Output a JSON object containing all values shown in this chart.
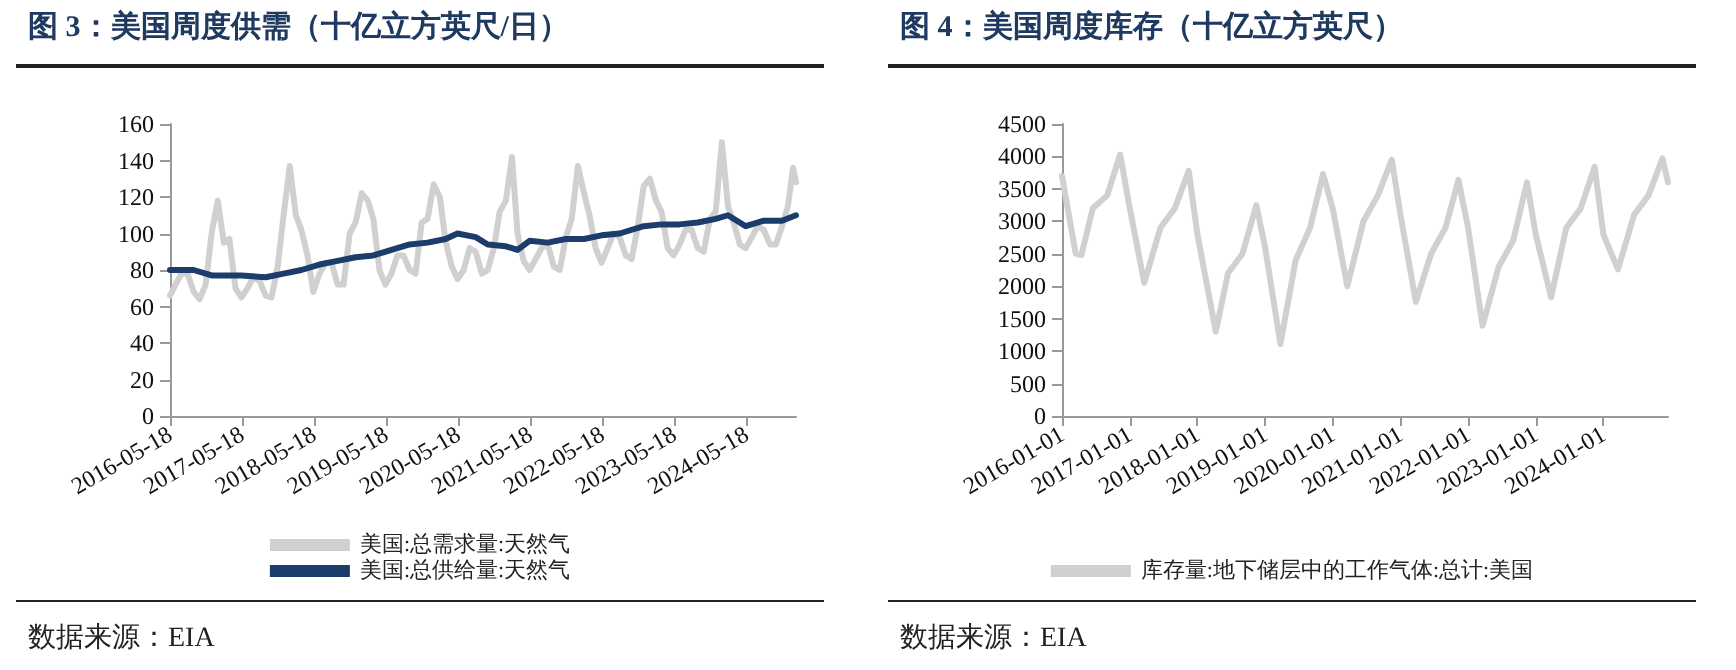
{
  "chart_data": [
    {
      "type": "line",
      "title": "图 3：美国周度供需（十亿立方英尺/日）",
      "annotations": [
        "数据来源：EIA"
      ],
      "legend": "bottom",
      "grid": false,
      "marker": "none",
      "line_style": "solid",
      "xlim": [
        "2016-05-18",
        "2025-01-25"
      ],
      "xticks": [
        "2016-05-18",
        "2017-05-18",
        "2018-05-18",
        "2019-05-18",
        "2020-05-18",
        "2021-05-18",
        "2022-05-18",
        "2023-05-18",
        "2024-05-18"
      ],
      "ylim": [
        0,
        160
      ],
      "yticks": [
        0,
        20,
        40,
        60,
        80,
        100,
        120,
        140,
        160
      ],
      "series": [
        {
          "name": "美国:总需求量:天然气",
          "color": "#d0d0d0",
          "x": [
            "2016-05-18",
            "2016-06-15",
            "2016-07-15",
            "2016-08-15",
            "2016-09-15",
            "2016-10-15",
            "2016-11-15",
            "2016-12-15",
            "2017-01-15",
            "2017-02-15",
            "2017-03-15",
            "2017-04-15",
            "2017-05-15",
            "2017-06-15",
            "2017-07-15",
            "2017-08-15",
            "2017-09-15",
            "2017-10-15",
            "2017-11-15",
            "2017-12-15",
            "2018-01-15",
            "2018-02-15",
            "2018-03-15",
            "2018-04-15",
            "2018-05-15",
            "2018-06-15",
            "2018-07-15",
            "2018-08-15",
            "2018-09-15",
            "2018-10-15",
            "2018-11-15",
            "2018-12-15",
            "2019-01-15",
            "2019-02-15",
            "2019-03-15",
            "2019-04-15",
            "2019-05-15",
            "2019-06-15",
            "2019-07-15",
            "2019-08-15",
            "2019-09-15",
            "2019-10-15",
            "2019-11-15",
            "2019-12-15",
            "2020-01-15",
            "2020-02-15",
            "2020-03-15",
            "2020-04-15",
            "2020-05-15",
            "2020-06-15",
            "2020-07-15",
            "2020-08-15",
            "2020-09-15",
            "2020-10-15",
            "2020-11-15",
            "2020-12-15",
            "2021-01-15",
            "2021-02-15",
            "2021-03-15",
            "2021-04-15",
            "2021-05-15",
            "2021-06-15",
            "2021-07-15",
            "2021-08-15",
            "2021-09-15",
            "2021-10-15",
            "2021-11-15",
            "2021-12-15",
            "2022-01-15",
            "2022-02-15",
            "2022-03-15",
            "2022-04-15",
            "2022-05-15",
            "2022-06-15",
            "2022-07-15",
            "2022-08-15",
            "2022-09-15",
            "2022-10-15",
            "2022-11-15",
            "2022-12-15",
            "2023-01-15",
            "2023-02-15",
            "2023-03-15",
            "2023-04-15",
            "2023-05-15",
            "2023-06-15",
            "2023-07-15",
            "2023-08-15",
            "2023-09-15",
            "2023-10-15",
            "2023-11-15",
            "2023-12-15",
            "2024-01-15",
            "2024-02-15",
            "2024-03-15",
            "2024-04-15",
            "2024-05-15",
            "2024-06-15",
            "2024-07-15",
            "2024-08-15",
            "2024-09-15",
            "2024-10-15",
            "2024-11-15",
            "2024-12-15",
            "2025-01-10",
            "2025-01-25"
          ],
          "values": [
            66,
            72,
            78,
            78,
            68,
            64,
            72,
            100,
            118,
            95,
            97,
            70,
            65,
            70,
            76,
            74,
            66,
            65,
            82,
            110,
            137,
            110,
            102,
            88,
            68,
            78,
            84,
            84,
            72,
            72,
            100,
            106,
            122,
            118,
            108,
            80,
            72,
            78,
            88,
            88,
            80,
            78,
            106,
            108,
            127,
            120,
            96,
            82,
            75,
            80,
            92,
            90,
            78,
            80,
            92,
            112,
            118,
            142,
            100,
            85,
            80,
            86,
            92,
            94,
            82,
            80,
            98,
            108,
            137,
            122,
            110,
            92,
            84,
            92,
            100,
            98,
            88,
            86,
            104,
            126,
            130,
            118,
            112,
            92,
            88,
            94,
            102,
            102,
            92,
            90,
            108,
            112,
            150,
            115,
            106,
            94,
            92,
            98,
            104,
            102,
            94,
            94,
            104,
            115,
            136,
            128
          ]
        },
        {
          "name": "美国:总供给量:天然气",
          "color": "#1c3d6b",
          "x": [
            "2016-05-18",
            "2016-09-15",
            "2016-12-15",
            "2017-05-15",
            "2017-09-15",
            "2017-12-15",
            "2018-03-15",
            "2018-06-15",
            "2018-09-15",
            "2018-12-15",
            "2019-03-15",
            "2019-06-15",
            "2019-09-15",
            "2019-12-15",
            "2020-03-15",
            "2020-05-15",
            "2020-08-15",
            "2020-10-15",
            "2021-01-15",
            "2021-03-15",
            "2021-05-15",
            "2021-08-15",
            "2021-11-15",
            "2022-02-15",
            "2022-05-15",
            "2022-08-15",
            "2022-12-15",
            "2023-03-15",
            "2023-06-15",
            "2023-09-15",
            "2023-12-15",
            "2024-02-15",
            "2024-05-15",
            "2024-08-15",
            "2024-11-15",
            "2025-01-25"
          ],
          "values": [
            80,
            80,
            77,
            77,
            76,
            78,
            80,
            83,
            85,
            87,
            88,
            91,
            94,
            95,
            97,
            100,
            98,
            94,
            93,
            91,
            96,
            95,
            97,
            97,
            99,
            100,
            104,
            105,
            105,
            106,
            108,
            110,
            104,
            107,
            107,
            110
          ]
        }
      ]
    },
    {
      "type": "line",
      "title": "图 4：美国周度库存（十亿立方英尺）",
      "annotations": [
        "数据来源：EIA"
      ],
      "legend": "bottom",
      "grid": false,
      "marker": "none",
      "line_style": "solid",
      "xlim": [
        "2016-01-01",
        "2024-12-15"
      ],
      "xticks": [
        "2016-01-01",
        "2017-01-01",
        "2018-01-01",
        "2019-01-01",
        "2020-01-01",
        "2021-01-01",
        "2022-01-01",
        "2023-01-01",
        "2024-01-01"
      ],
      "ylim": [
        0,
        4500
      ],
      "yticks": [
        0,
        500,
        1000,
        1500,
        2000,
        2500,
        3000,
        3500,
        4000,
        4500
      ],
      "series": [
        {
          "name": "库存量:地下储层中的工作气体:总计:美国",
          "color": "#d0d0d0",
          "x": [
            "2016-01-01",
            "2016-03-15",
            "2016-04-15",
            "2016-06-15",
            "2016-09-01",
            "2016-11-10",
            "2017-01-01",
            "2017-03-20",
            "2017-06-15",
            "2017-09-01",
            "2017-11-15",
            "2018-01-01",
            "2018-04-10",
            "2018-06-15",
            "2018-09-01",
            "2018-11-15",
            "2019-01-01",
            "2019-03-25",
            "2019-06-15",
            "2019-09-01",
            "2019-11-10",
            "2020-01-01",
            "2020-03-20",
            "2020-06-15",
            "2020-09-01",
            "2020-11-15",
            "2021-01-01",
            "2021-03-25",
            "2021-06-15",
            "2021-09-01",
            "2021-11-10",
            "2022-01-01",
            "2022-03-20",
            "2022-06-15",
            "2022-09-01",
            "2022-11-15",
            "2023-01-01",
            "2023-03-25",
            "2023-06-15",
            "2023-09-01",
            "2023-11-15",
            "2024-01-01",
            "2024-03-20",
            "2024-06-15",
            "2024-09-01",
            "2024-11-15",
            "2024-12-15"
          ],
          "values": [
            3700,
            2500,
            2480,
            3200,
            3400,
            4030,
            3200,
            2050,
            2900,
            3200,
            3780,
            2800,
            1300,
            2200,
            2500,
            3250,
            2600,
            1110,
            2400,
            2900,
            3730,
            3200,
            2000,
            3000,
            3400,
            3950,
            3100,
            1760,
            2500,
            2900,
            3640,
            2900,
            1390,
            2300,
            2700,
            3600,
            2800,
            1830,
            2900,
            3200,
            3840,
            2800,
            2260,
            3100,
            3400,
            3970,
            3600
          ]
        }
      ]
    }
  ]
}
